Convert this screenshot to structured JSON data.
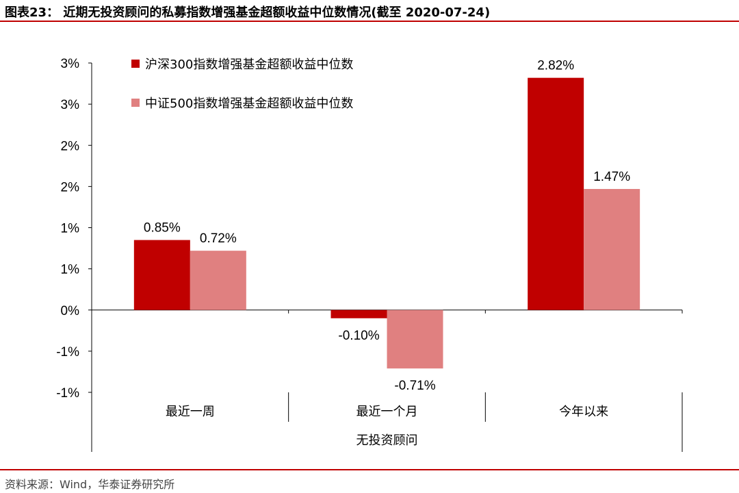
{
  "title": "图表23：  近期无投资顾问的私募指数增强基金超额收益中位数情况(截至 2020-07-24)",
  "source": "资料来源：Wind，华泰证券研究所",
  "chart_data": {
    "type": "bar",
    "categories": [
      "最近一周",
      "最近一个月",
      "今年以来"
    ],
    "group_label": "无投资顾问",
    "series": [
      {
        "name": "沪深300指数增强基金超额收益中位数",
        "color": "#c00000",
        "values": [
          0.85,
          -0.1,
          2.82
        ],
        "labels": [
          "0.85%",
          "-0.10%",
          "2.82%"
        ]
      },
      {
        "name": "中证500指数增强基金超额收益中位数",
        "color": "#e08080",
        "values": [
          0.72,
          -0.71,
          1.47
        ],
        "labels": [
          "0.72%",
          "-0.71%",
          "1.47%"
        ]
      }
    ],
    "ylim": [
      -1.0,
      3.0
    ],
    "ytick_values": [
      3.0,
      2.5,
      2.0,
      1.5,
      1.0,
      0.5,
      0.0,
      -0.5,
      -1.0
    ],
    "ytick_labels": [
      "3%",
      "3%",
      "2%",
      "2%",
      "1%",
      "1%",
      "0%",
      "-1%",
      "-1%"
    ],
    "legend_position": "top-left",
    "grid": false
  }
}
